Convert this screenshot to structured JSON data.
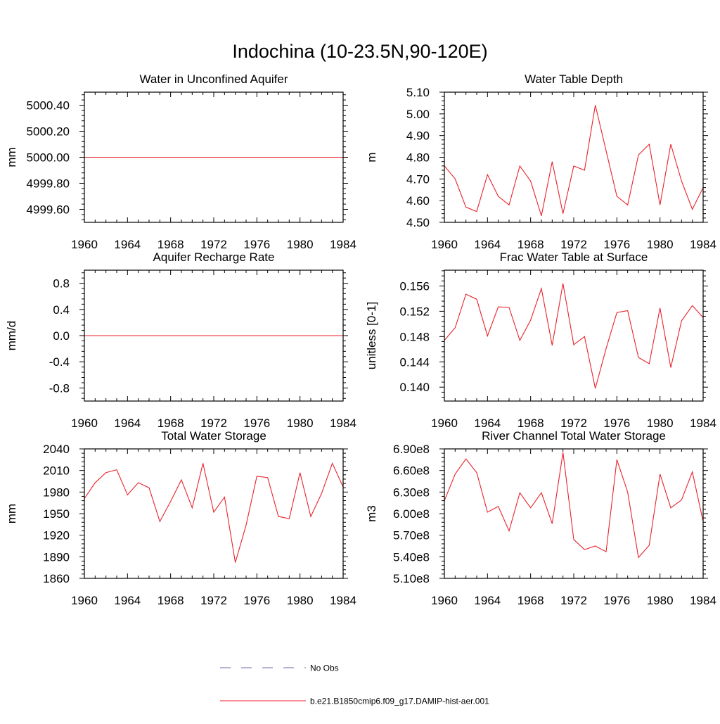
{
  "title": "Indochina (10-23.5N,90-120E)",
  "legend": {
    "placement": "bottom",
    "entries": [
      {
        "label": "No Obs",
        "color": "#6a6aaa",
        "style": "dashed"
      },
      {
        "label": "b.e21.B1850cmip6.f09_g17.DAMIP-hist-aer.001",
        "color": "#e8222a",
        "style": "solid"
      }
    ]
  },
  "chart_data": [
    {
      "type": "line",
      "title": "Water in Unconfined Aquifer",
      "ylabel": "mm",
      "xlim": [
        1960,
        1984
      ],
      "ylim": [
        4999.5,
        5000.5
      ],
      "xticks": [
        1960,
        1964,
        1968,
        1972,
        1976,
        1980,
        1984
      ],
      "yticks": [
        4999.6,
        4999.8,
        5000.0,
        5000.2,
        5000.4
      ],
      "yticklabels": [
        "4999.60",
        "4999.80",
        "5000.00",
        "5000.20",
        "5000.40"
      ],
      "x": [
        1960,
        1961,
        1962,
        1963,
        1964,
        1965,
        1966,
        1967,
        1968,
        1969,
        1970,
        1971,
        1972,
        1973,
        1974,
        1975,
        1976,
        1977,
        1978,
        1979,
        1980,
        1981,
        1982,
        1983,
        1984
      ],
      "series": [
        {
          "color": "#e8222a",
          "values": [
            5000,
            5000,
            5000,
            5000,
            5000,
            5000,
            5000,
            5000,
            5000,
            5000,
            5000,
            5000,
            5000,
            5000,
            5000,
            5000,
            5000,
            5000,
            5000,
            5000,
            5000,
            5000,
            5000,
            5000,
            5000
          ]
        }
      ]
    },
    {
      "type": "line",
      "title": "Water Table Depth",
      "ylabel": "m",
      "xlim": [
        1960,
        1984
      ],
      "ylim": [
        4.5,
        5.1
      ],
      "xticks": [
        1960,
        1964,
        1968,
        1972,
        1976,
        1980,
        1984
      ],
      "yticks": [
        4.5,
        4.6,
        4.7,
        4.8,
        4.9,
        5.0,
        5.1
      ],
      "yticklabels": [
        "4.50",
        "4.60",
        "4.70",
        "4.80",
        "4.90",
        "5.00",
        "5.10"
      ],
      "x": [
        1960,
        1961,
        1962,
        1963,
        1964,
        1965,
        1966,
        1967,
        1968,
        1969,
        1970,
        1971,
        1972,
        1973,
        1974,
        1975,
        1976,
        1977,
        1978,
        1979,
        1980,
        1981,
        1982,
        1983,
        1984
      ],
      "series": [
        {
          "color": "#e8222a",
          "values": [
            4.76,
            4.7,
            4.57,
            4.55,
            4.72,
            4.62,
            4.58,
            4.76,
            4.69,
            4.53,
            4.78,
            4.54,
            4.76,
            4.74,
            5.04,
            4.83,
            4.62,
            4.58,
            4.81,
            4.86,
            4.58,
            4.86,
            4.69,
            4.56,
            4.66
          ]
        }
      ]
    },
    {
      "type": "line",
      "title": "Aquifer Recharge Rate",
      "ylabel": "mm/d",
      "xlim": [
        1960,
        1984
      ],
      "ylim": [
        -1.0,
        1.0
      ],
      "xticks": [
        1960,
        1964,
        1968,
        1972,
        1976,
        1980,
        1984
      ],
      "yticks": [
        -0.8,
        -0.4,
        0.0,
        0.4,
        0.8
      ],
      "yticklabels": [
        "-0.8",
        "-0.4",
        "0.0",
        "0.4",
        "0.8"
      ],
      "x": [
        1960,
        1961,
        1962,
        1963,
        1964,
        1965,
        1966,
        1967,
        1968,
        1969,
        1970,
        1971,
        1972,
        1973,
        1974,
        1975,
        1976,
        1977,
        1978,
        1979,
        1980,
        1981,
        1982,
        1983,
        1984
      ],
      "series": [
        {
          "color": "#e8222a",
          "values": [
            0,
            0,
            0,
            0,
            0,
            0,
            0,
            0,
            0,
            0,
            0,
            0,
            0,
            0,
            0,
            0,
            0,
            0,
            0,
            0,
            0,
            0,
            0,
            0,
            0
          ]
        }
      ]
    },
    {
      "type": "line",
      "title": "Frac Water Table at Surface",
      "ylabel": "unitless [0-1]",
      "xlim": [
        1960,
        1984
      ],
      "ylim": [
        0.1378,
        0.1585
      ],
      "xticks": [
        1960,
        1964,
        1968,
        1972,
        1976,
        1980,
        1984
      ],
      "yticks": [
        0.14,
        0.144,
        0.148,
        0.152,
        0.156
      ],
      "yticklabels": [
        "0.140",
        "0.144",
        "0.148",
        "0.152",
        "0.156"
      ],
      "x": [
        1960,
        1961,
        1962,
        1963,
        1964,
        1965,
        1966,
        1967,
        1968,
        1969,
        1970,
        1971,
        1972,
        1973,
        1974,
        1975,
        1976,
        1977,
        1978,
        1979,
        1980,
        1981,
        1982,
        1983,
        1984
      ],
      "series": [
        {
          "color": "#e8222a",
          "values": [
            0.1474,
            0.1494,
            0.1547,
            0.1539,
            0.1481,
            0.1527,
            0.1526,
            0.1474,
            0.1506,
            0.1556,
            0.1466,
            0.1564,
            0.1467,
            0.148,
            0.1398,
            0.1461,
            0.1518,
            0.1521,
            0.1447,
            0.1437,
            0.1525,
            0.1431,
            0.1505,
            0.1529,
            0.151
          ]
        }
      ]
    },
    {
      "type": "line",
      "title": "Total Water Storage",
      "ylabel": "mm",
      "xlim": [
        1960,
        1984
      ],
      "ylim": [
        1860,
        2040
      ],
      "xticks": [
        1960,
        1964,
        1968,
        1972,
        1976,
        1980,
        1984
      ],
      "yticks": [
        1860,
        1890,
        1920,
        1950,
        1980,
        2010,
        2040
      ],
      "yticklabels": [
        "1860",
        "1890",
        "1920",
        "1950",
        "1980",
        "2010",
        "2040"
      ],
      "x": [
        1960,
        1961,
        1962,
        1963,
        1964,
        1965,
        1966,
        1967,
        1968,
        1969,
        1970,
        1971,
        1972,
        1973,
        1974,
        1975,
        1976,
        1977,
        1978,
        1979,
        1980,
        1981,
        1982,
        1983,
        1984
      ],
      "series": [
        {
          "color": "#e8222a",
          "values": [
            1971,
            1993,
            2007,
            2011,
            1976,
            1993,
            1986,
            1939,
            1967,
            1997,
            1958,
            2020,
            1952,
            1973,
            1882,
            1934,
            2002,
            2000,
            1946,
            1943,
            2007,
            1946,
            1978,
            2020,
            1987
          ]
        }
      ]
    },
    {
      "type": "line",
      "title": "River Channel Total Water Storage",
      "ylabel": "m3",
      "xlim": [
        1960,
        1984
      ],
      "ylim": [
        510000000,
        690000000
      ],
      "xticks": [
        1960,
        1964,
        1968,
        1972,
        1976,
        1980,
        1984
      ],
      "yticks": [
        510000000,
        540000000,
        570000000,
        600000000,
        630000000,
        660000000,
        690000000
      ],
      "yticklabels": [
        "5.10e8",
        "5.40e8",
        "5.70e8",
        "6.00e8",
        "6.30e8",
        "6.60e8",
        "6.90e8"
      ],
      "x": [
        1960,
        1961,
        1962,
        1963,
        1964,
        1965,
        1966,
        1967,
        1968,
        1969,
        1970,
        1971,
        1972,
        1973,
        1974,
        1975,
        1976,
        1977,
        1978,
        1979,
        1980,
        1981,
        1982,
        1983,
        1984
      ],
      "series": [
        {
          "color": "#e8222a",
          "values": [
            618000000,
            655000000,
            676000000,
            657000000,
            602000000,
            610000000,
            576000000,
            629000000,
            608000000,
            629000000,
            586000000,
            685000000,
            564000000,
            550000000,
            555000000,
            547000000,
            675000000,
            630000000,
            539000000,
            556000000,
            655000000,
            608000000,
            619000000,
            658000000,
            589000000
          ]
        }
      ]
    }
  ]
}
